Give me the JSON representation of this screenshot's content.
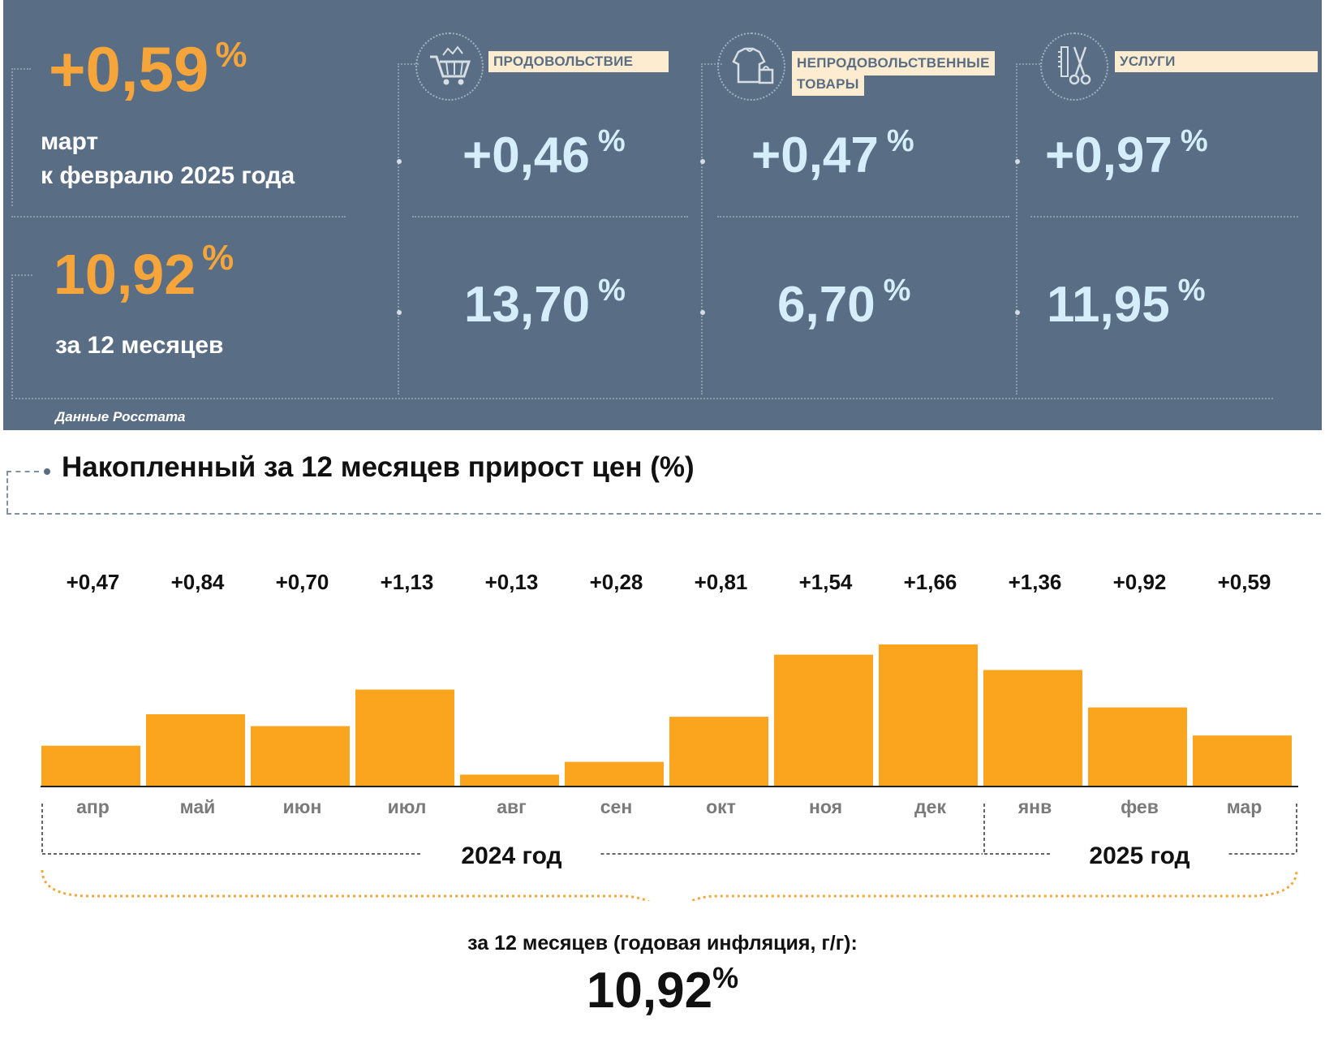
{
  "summary": {
    "monthly": {
      "value": "+0,59",
      "unit": "%",
      "label_line1": "март",
      "label_line2": "к февралю 2025 года"
    },
    "annual": {
      "value": "10,92",
      "unit": "%",
      "label": "за 12 месяцев"
    },
    "source": "Данные Росстата"
  },
  "categories": [
    {
      "title_line1": "ПРОДОВОЛЬСТВИЕ",
      "title_line2": "",
      "icon": "shopping-cart-icon",
      "monthly": "+0,46",
      "annual": "13,70",
      "unit": "%"
    },
    {
      "title_line1": "НЕПРОДОВОЛЬСТВЕННЫЕ",
      "title_line2": "ТОВАРЫ",
      "icon": "clothes-bag-icon",
      "monthly": "+0,47",
      "annual": "6,70",
      "unit": "%"
    },
    {
      "title_line1": "УСЛУГИ",
      "title_line2": "",
      "icon": "scissors-comb-icon",
      "monthly": "+0,97",
      "annual": "11,95",
      "unit": "%"
    }
  ],
  "colors": {
    "panel": "#596e84",
    "accent": "#f5a53a",
    "value_blue": "#d6eefc",
    "bar": "#fba51f",
    "pill": "#fdeccf"
  },
  "chart_data": {
    "type": "bar",
    "title": "Накопленный за 12 месяцев прирост цен (%)",
    "categories": [
      "апр",
      "май",
      "июн",
      "июл",
      "авг",
      "сен",
      "окт",
      "ноя",
      "дек",
      "янв",
      "фев",
      "мар"
    ],
    "values": [
      0.47,
      0.84,
      0.7,
      1.13,
      0.13,
      0.28,
      0.81,
      1.54,
      1.66,
      1.36,
      0.92,
      0.59
    ],
    "labels": [
      "+0,47",
      "+0,84",
      "+0,70",
      "+1,13",
      "+0,13",
      "+0,28",
      "+0,81",
      "+1,54",
      "+1,66",
      "+1,36",
      "+0,92",
      "+0,59"
    ],
    "ylim": [
      0,
      1.66
    ],
    "year_groups": [
      {
        "label": "2024 год",
        "months": 9
      },
      {
        "label": "2025 год",
        "months": 3
      }
    ],
    "total_caption": "за 12 месяцев (годовая инфляция, г/г):",
    "total_value": "10,92",
    "total_unit": "%"
  }
}
